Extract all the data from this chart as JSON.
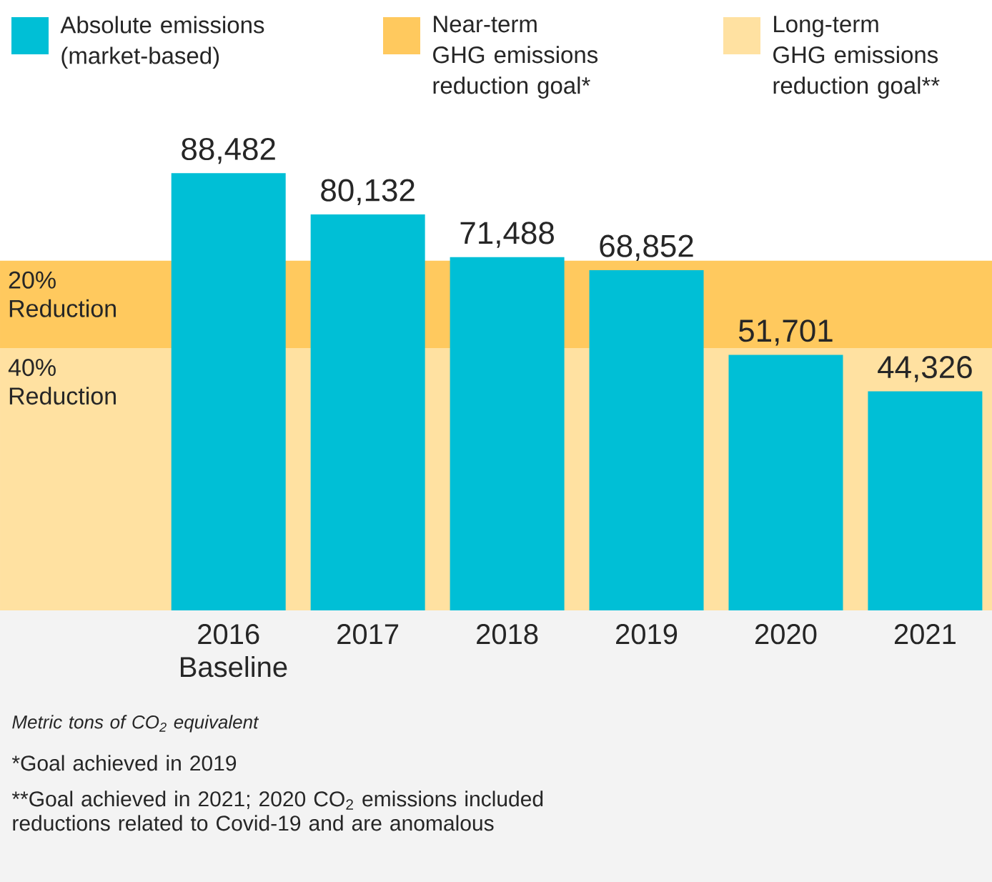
{
  "chart_data": {
    "type": "bar",
    "categories": [
      "2016 Baseline",
      "2017",
      "2018",
      "2019",
      "2020",
      "2021"
    ],
    "series": [
      {
        "name": "Absolute emissions (market-based)",
        "color": "#00bfd6",
        "values": [
          88482,
          80132,
          71488,
          68852,
          51701,
          44326
        ],
        "value_labels": [
          "88,482",
          "80,132",
          "71,488",
          "68,852",
          "51,701",
          "44,326"
        ]
      }
    ],
    "bands": [
      {
        "axis": "y",
        "from": 53089,
        "to": 70786,
        "label": "20% Reduction",
        "color": "#ffc95e"
      },
      {
        "axis": "y",
        "from": 0,
        "to": 53089,
        "label": "40% Reduction",
        "color": "#ffe1a1"
      }
    ],
    "legend": "top",
    "annotations": [
      "Near-term GHG emissions reduction goal*",
      "Long-term GHG emissions reduction goal**",
      "Metric tons of CO$_{2}$ equivalent",
      "*Goal achieved in 2019",
      "**Goal achieved in 2021; 2020 CO$_{2}$ emissions included reductions related to Covid-19 and are anomalous"
    ]
  }
}
